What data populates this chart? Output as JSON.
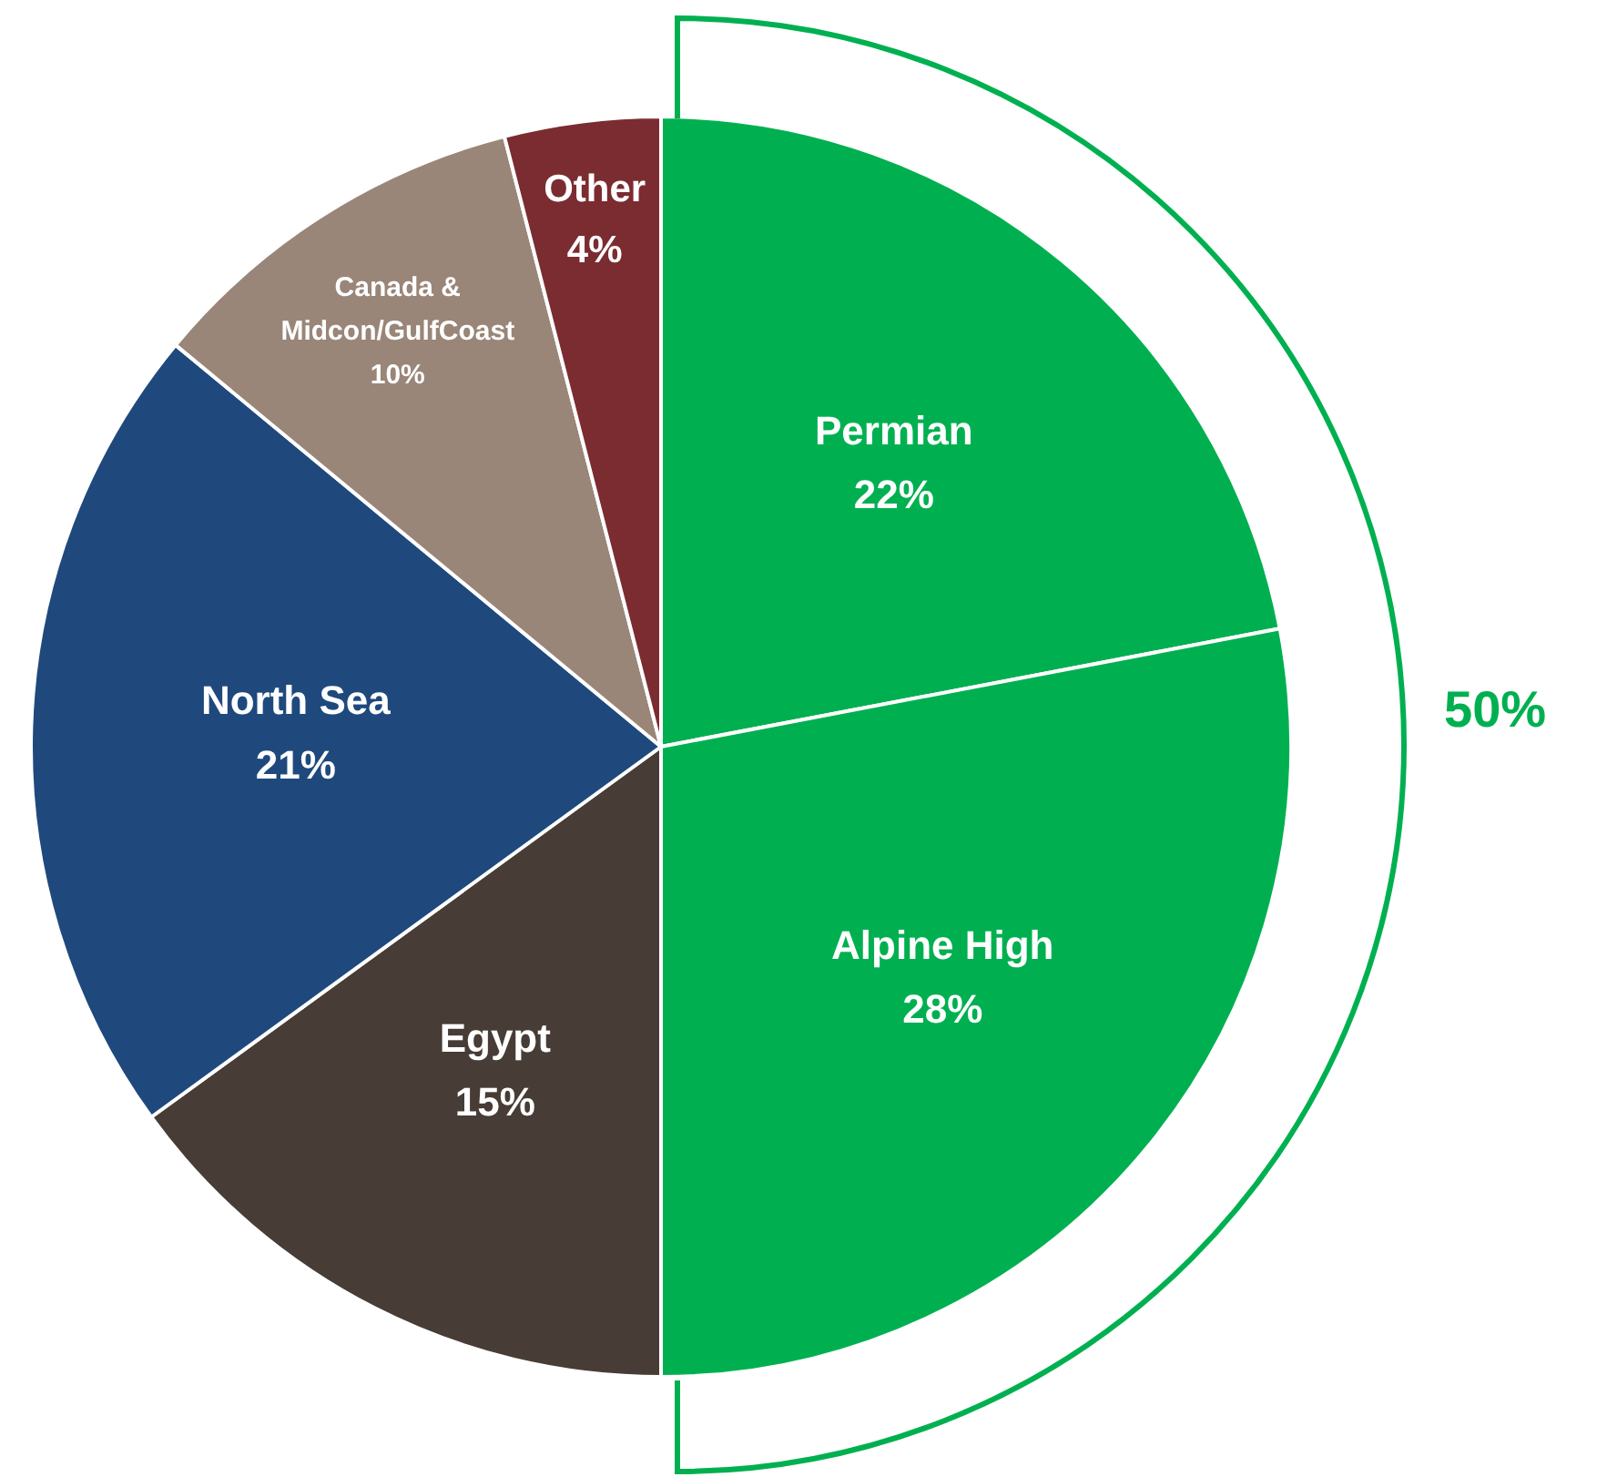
{
  "chart_data": {
    "type": "pie",
    "categories": [
      "Permian",
      "Alpine High",
      "Egypt",
      "North Sea",
      "Canada & Midcon/GulfCoast",
      "Other"
    ],
    "values": [
      22,
      28,
      15,
      21,
      10,
      4
    ],
    "colors": [
      "#00b050",
      "#00b050",
      "#473c36",
      "#1f497d",
      "#998679",
      "#7b2c31"
    ],
    "value_labels": [
      "22%",
      "28%",
      "15%",
      "21%",
      "10%",
      "4%"
    ],
    "legend": false,
    "annotations": [
      "50%"
    ]
  }
}
